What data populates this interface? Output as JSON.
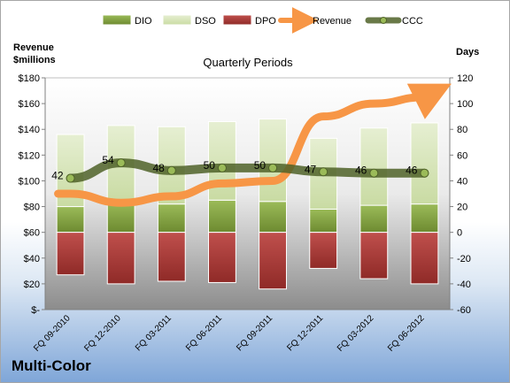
{
  "chart_data": {
    "type": "bar",
    "subtitle": "Quarterly Periods",
    "left_axis_title_line1": "Revenue",
    "left_axis_title_line2": "$millions",
    "right_axis_title": "Days",
    "footer_label": "Multi-Color",
    "categories": [
      "FQ 09-2010",
      "FQ 12-2010",
      "FQ 03-2011",
      "FQ 06-2011",
      "FQ 09-2011",
      "FQ 12-2011",
      "FQ 03-2012",
      "FQ 06-2012"
    ],
    "left_axis": {
      "min": 0,
      "max": 180,
      "step": 20,
      "ticks": [
        "$-",
        "$20",
        "$40",
        "$60",
        "$80",
        "$100",
        "$120",
        "$140",
        "$160",
        "$180"
      ]
    },
    "right_axis": {
      "min": -60,
      "max": 120,
      "step": 20,
      "ticks": [
        "-60",
        "-40",
        "-20",
        "0",
        "20",
        "40",
        "60",
        "80",
        "100",
        "120"
      ]
    },
    "series": [
      {
        "name": "DIO",
        "type": "bar",
        "axis": "right",
        "color": "#77933c",
        "values": [
          20,
          24,
          22,
          25,
          24,
          18,
          21,
          22
        ]
      },
      {
        "name": "DSO",
        "type": "bar",
        "axis": "right",
        "color": "#d7e4bd",
        "values": [
          56,
          59,
          60,
          61,
          64,
          55,
          60,
          63
        ]
      },
      {
        "name": "DPO",
        "type": "bar",
        "axis": "right",
        "color": "#c0504d",
        "values": [
          -33,
          -40,
          -38,
          -39,
          -44,
          -28,
          -36,
          -40
        ]
      },
      {
        "name": "Revenue",
        "type": "line",
        "axis": "left",
        "color": "#f79646",
        "values": [
          90,
          83,
          88,
          98,
          100,
          150,
          160,
          165
        ]
      },
      {
        "name": "CCC",
        "type": "line",
        "axis": "right",
        "color": "#4f6228",
        "values": [
          42,
          54,
          48,
          50,
          50,
          47,
          46,
          46
        ],
        "labels": [
          "42",
          "54",
          "48",
          "50",
          "50",
          "47",
          "46",
          "46"
        ]
      }
    ],
    "legend": {
      "position": "top",
      "items": [
        "DIO",
        "DSO",
        "DPO",
        "Revenue",
        "CCC"
      ]
    },
    "grid": false
  }
}
